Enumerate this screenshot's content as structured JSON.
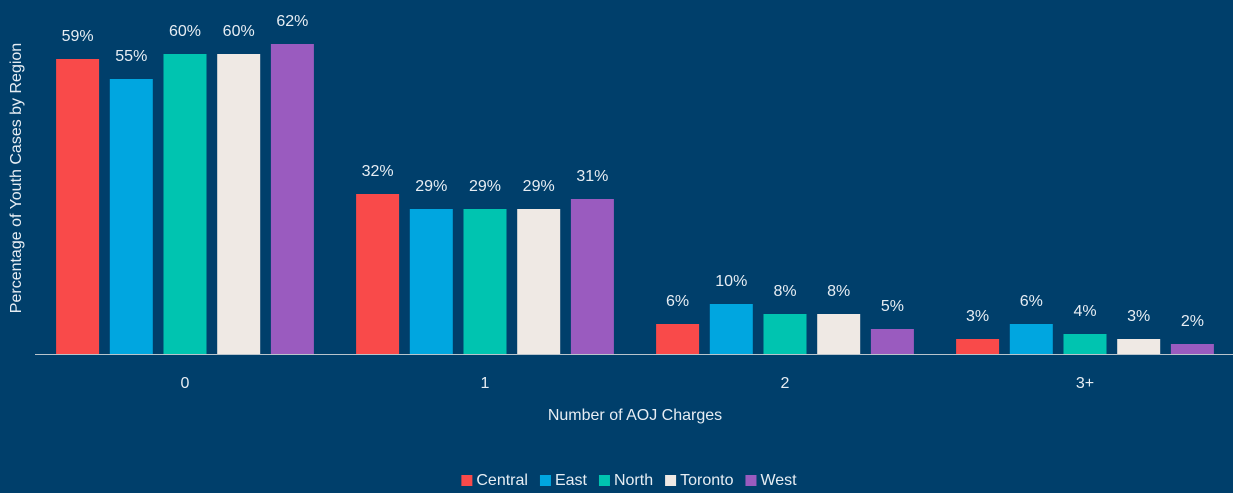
{
  "chart_data": {
    "type": "bar",
    "x_label": "Number of AOJ Charges",
    "y_label": "Percentage of Youth Cases by Region",
    "categories": [
      "0",
      "1",
      "2",
      "3+"
    ],
    "ylim": [
      0,
      70
    ],
    "series": [
      {
        "name": "Central",
        "color": "#f94a4a",
        "values": [
          59,
          32,
          6,
          3
        ],
        "value_labels": [
          "59%",
          "32%",
          "6%",
          "3%"
        ]
      },
      {
        "name": "East",
        "color": "#00a6e0",
        "values": [
          55,
          29,
          10,
          6
        ],
        "value_labels": [
          "55%",
          "29%",
          "10%",
          "6%"
        ]
      },
      {
        "name": "North",
        "color": "#00c4b0",
        "values": [
          60,
          29,
          8,
          4
        ],
        "value_labels": [
          "60%",
          "29%",
          "8%",
          "4%"
        ]
      },
      {
        "name": "Toronto",
        "color": "#efe9e4",
        "values": [
          60,
          29,
          8,
          3
        ],
        "value_labels": [
          "60%",
          "29%",
          "8%",
          "3%"
        ]
      },
      {
        "name": "West",
        "color": "#9a5bbf",
        "values": [
          62,
          31,
          5,
          2
        ],
        "value_labels": [
          "62%",
          "31%",
          "5%",
          "2%"
        ]
      }
    ],
    "legend": "bottom"
  }
}
